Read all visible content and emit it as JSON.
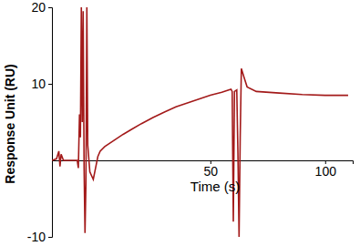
{
  "chart_data": {
    "type": "line",
    "x_label": "Time (s)",
    "y_label": "Response Unit (RU)",
    "x": [
      -19,
      -17,
      -16,
      -15.5,
      -15,
      -14,
      -8,
      -7.5,
      -7,
      -6.6,
      -6.2,
      -5.8,
      -5.4,
      -5,
      -4.6,
      -4.2,
      -3.8,
      -3.4,
      -2.5,
      -1,
      0,
      1,
      2,
      4,
      8,
      12,
      16,
      20,
      25,
      30,
      35,
      40,
      45,
      50,
      55,
      58,
      59,
      59.5,
      60,
      60.5,
      61.5,
      62,
      62.5,
      63,
      63.5,
      64.5,
      66,
      70,
      80,
      90,
      100,
      110
    ],
    "values": [
      0,
      0.2,
      1.2,
      -0.8,
      0.8,
      0,
      0,
      -1,
      6,
      3,
      20,
      5,
      19.5,
      -1,
      -9.5,
      -3,
      20,
      2,
      -1.5,
      -2.5,
      -1,
      0.5,
      1.2,
      1.8,
      2.6,
      3.4,
      4.1,
      4.8,
      5.6,
      6.3,
      7,
      7.5,
      8,
      8.5,
      8.9,
      9.2,
      9.3,
      9,
      -8,
      9,
      9.2,
      1,
      -10,
      3,
      12,
      11,
      9.6,
      9,
      8.8,
      8.6,
      8.5,
      8.5
    ],
    "color": "#a31a1a",
    "xlim": [
      -19,
      112
    ],
    "xticks": [
      50,
      100
    ],
    "ylim": [
      -10,
      20
    ],
    "yticks": [
      -10,
      10,
      20
    ],
    "grid": false
  }
}
